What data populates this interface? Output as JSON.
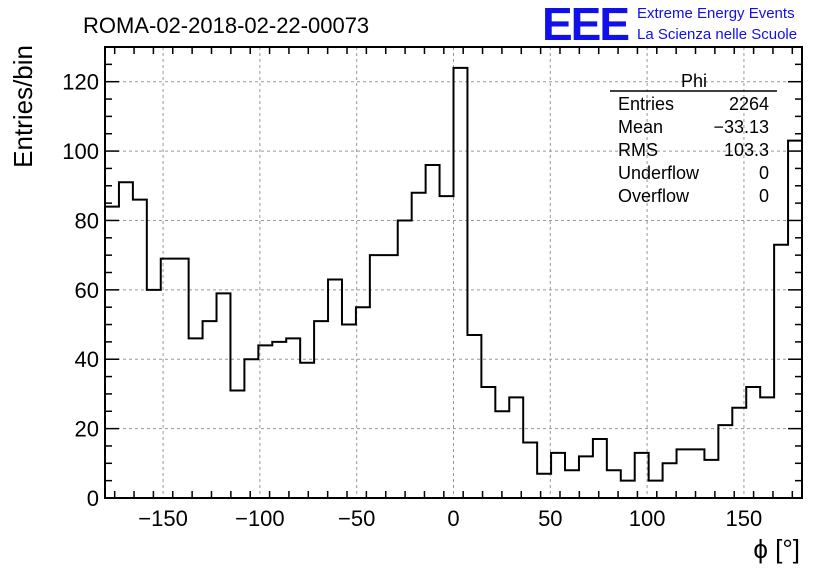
{
  "chart_data": {
    "type": "histogram",
    "title": "ROMA-02-2018-02-22-00073",
    "xlabel": "ϕ [°]",
    "ylabel": "Entries/bin",
    "xlim": [
      -180,
      180
    ],
    "ylim": [
      0,
      130
    ],
    "bin_width": 7.2,
    "x_ticks": [
      -150,
      -100,
      -50,
      0,
      50,
      100,
      150
    ],
    "y_ticks": [
      0,
      20,
      40,
      60,
      80,
      100,
      120
    ],
    "x_tick_labels": [
      "−150",
      "−100",
      "−50",
      "0",
      "50",
      "100",
      "150"
    ],
    "y_tick_labels": [
      "0",
      "20",
      "40",
      "60",
      "80",
      "100",
      "120"
    ],
    "grid": true,
    "values": [
      84,
      91,
      86,
      60,
      69,
      69,
      46,
      51,
      59,
      31,
      40,
      44,
      45,
      46,
      39,
      51,
      63,
      50,
      55,
      70,
      70,
      80,
      88,
      96,
      87,
      124,
      47,
      32,
      25,
      29,
      16,
      7,
      13,
      8,
      12,
      17,
      8,
      5,
      13,
      5,
      10,
      14,
      14,
      11,
      21,
      26,
      32,
      29,
      73,
      103
    ],
    "color": "#000000",
    "stats": {
      "name": "Phi",
      "rows": [
        {
          "label": "Entries",
          "value": "2264"
        },
        {
          "label": "Mean",
          "value": "−33.13"
        },
        {
          "label": "RMS",
          "value": "103.3"
        },
        {
          "label": "Underflow",
          "value": "0"
        },
        {
          "label": "Overflow",
          "value": "0"
        }
      ]
    }
  },
  "logo": {
    "mark": "EEE",
    "line1": "Extreme Energy Events",
    "line2": "La Scienza nelle Scuole",
    "color": "#1010e8"
  }
}
